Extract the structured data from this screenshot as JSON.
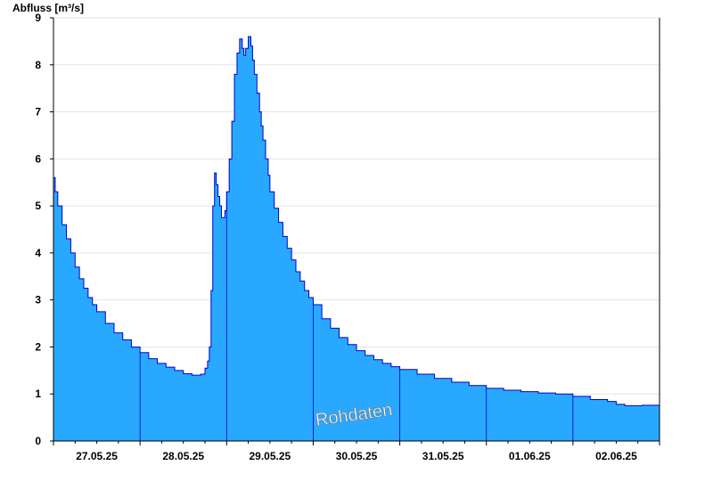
{
  "chart_data": {
    "type": "area",
    "ylabel": "Abfluss [m³/s]",
    "ylim": [
      0,
      9
    ],
    "yticks": [
      0,
      1,
      2,
      3,
      4,
      5,
      6,
      7,
      8,
      9
    ],
    "xlim": [
      0,
      7
    ],
    "xtick_labels": [
      "27.05.25",
      "28.05.25",
      "29.05.25",
      "30.05.25",
      "31.05.25",
      "01.06.25",
      "02.06.25"
    ],
    "grid": true,
    "annotation": "Rohdaten",
    "colors": {
      "fill": "#29A8FF",
      "line": "#0000CC",
      "grid": "#E6E6E6"
    },
    "x_unit": "days since 27.05.25 00:00",
    "series": [
      {
        "x": [
          0,
          0.02,
          0.05,
          0.1,
          0.15,
          0.2,
          0.25,
          0.3,
          0.35,
          0.4,
          0.45,
          0.5,
          0.6,
          0.7,
          0.8,
          0.9,
          1.0,
          1.1,
          1.2,
          1.3,
          1.4,
          1.5,
          1.6,
          1.7,
          1.75,
          1.78,
          1.8,
          1.82,
          1.84,
          1.86,
          1.88,
          1.9,
          1.92,
          1.94,
          1.96,
          1.98,
          2.0,
          2.03,
          2.06,
          2.09,
          2.12,
          2.15,
          2.18,
          2.2,
          2.22,
          2.25,
          2.28,
          2.3,
          2.32,
          2.35,
          2.38,
          2.4,
          2.42,
          2.45,
          2.48,
          2.5,
          2.55,
          2.6,
          2.65,
          2.7,
          2.75,
          2.8,
          2.85,
          2.9,
          2.95,
          3.0,
          3.1,
          3.2,
          3.3,
          3.4,
          3.5,
          3.6,
          3.7,
          3.8,
          3.9,
          4.0,
          4.2,
          4.4,
          4.6,
          4.8,
          5.0,
          5.2,
          5.4,
          5.6,
          5.8,
          6.0,
          6.2,
          6.4,
          6.5,
          6.6,
          6.8,
          7.0
        ],
        "values": [
          5.6,
          5.3,
          5.0,
          4.6,
          4.3,
          4.0,
          3.7,
          3.45,
          3.25,
          3.05,
          2.9,
          2.75,
          2.5,
          2.3,
          2.15,
          2.0,
          1.88,
          1.75,
          1.65,
          1.57,
          1.5,
          1.43,
          1.4,
          1.42,
          1.55,
          1.7,
          2.0,
          3.2,
          5.0,
          5.7,
          5.45,
          5.2,
          5.0,
          4.75,
          4.75,
          4.9,
          5.3,
          6.0,
          6.8,
          7.8,
          8.25,
          8.55,
          8.35,
          8.2,
          8.35,
          8.6,
          8.4,
          8.1,
          7.8,
          7.4,
          7.0,
          6.7,
          6.4,
          6.0,
          5.65,
          5.3,
          4.95,
          4.65,
          4.35,
          4.1,
          3.85,
          3.6,
          3.4,
          3.2,
          3.05,
          2.9,
          2.6,
          2.4,
          2.2,
          2.05,
          1.92,
          1.82,
          1.73,
          1.65,
          1.58,
          1.52,
          1.42,
          1.33,
          1.25,
          1.18,
          1.12,
          1.08,
          1.05,
          1.02,
          1.0,
          0.95,
          0.88,
          0.84,
          0.78,
          0.75,
          0.76,
          0.74
        ]
      }
    ]
  }
}
